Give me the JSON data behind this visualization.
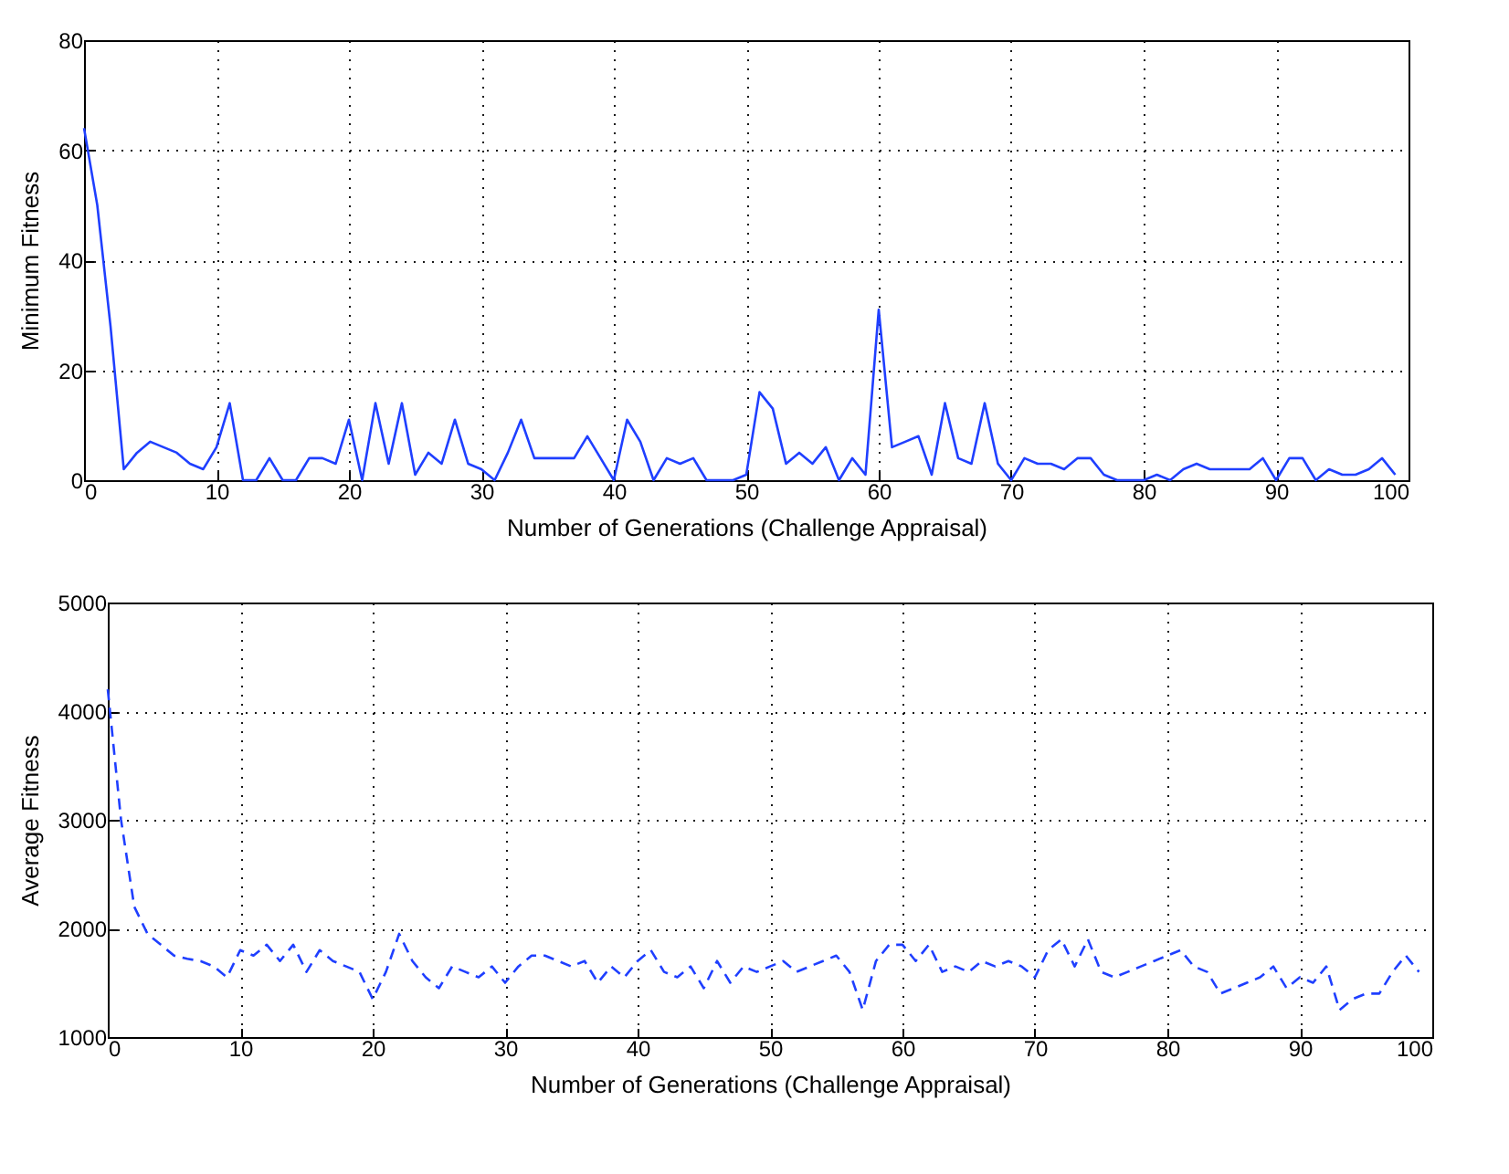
{
  "chart_data": [
    {
      "type": "line",
      "xlabel": "Number of Generations (Challenge Appraisal)",
      "ylabel": "Minimum Fitness",
      "x": [
        0,
        1,
        2,
        3,
        4,
        5,
        6,
        7,
        8,
        9,
        10,
        11,
        12,
        13,
        14,
        15,
        16,
        17,
        18,
        19,
        20,
        21,
        22,
        23,
        24,
        25,
        26,
        27,
        28,
        29,
        30,
        31,
        32,
        33,
        34,
        35,
        36,
        37,
        38,
        39,
        40,
        41,
        42,
        43,
        44,
        45,
        46,
        47,
        48,
        49,
        50,
        51,
        52,
        53,
        54,
        55,
        56,
        57,
        58,
        59,
        60,
        61,
        62,
        63,
        64,
        65,
        66,
        67,
        68,
        69,
        70,
        71,
        72,
        73,
        74,
        75,
        76,
        77,
        78,
        79,
        80,
        81,
        82,
        83,
        84,
        85,
        86,
        87,
        88,
        89,
        90,
        91,
        92,
        93,
        94,
        95,
        96,
        97,
        98,
        99
      ],
      "series": [
        {
          "color": "#1f3fff",
          "values": [
            64,
            50,
            28,
            2,
            5,
            7,
            6,
            5,
            3,
            2,
            6,
            14,
            0,
            0,
            4,
            0,
            0,
            4,
            4,
            3,
            11,
            0,
            14,
            3,
            14,
            1,
            5,
            3,
            11,
            3,
            2,
            0,
            5,
            11,
            4,
            4,
            4,
            4,
            8,
            4,
            0,
            11,
            7,
            0,
            4,
            3,
            4,
            0,
            0,
            0,
            1,
            16,
            13,
            3,
            5,
            3,
            6,
            0,
            4,
            1,
            31,
            6,
            7,
            8,
            1,
            14,
            4,
            3,
            14,
            3,
            0,
            4,
            3,
            3,
            2,
            4,
            4,
            1,
            0,
            0,
            0,
            1,
            0,
            2,
            3,
            2,
            2,
            2,
            2,
            4,
            0,
            4,
            4,
            0,
            2,
            1,
            1,
            2,
            4,
            1
          ]
        }
      ],
      "xlim": [
        0,
        100
      ],
      "xticks": [
        0,
        10,
        20,
        30,
        40,
        50,
        60,
        70,
        80,
        90,
        100
      ],
      "ylim": [
        0,
        80
      ],
      "yticks": [
        0,
        20,
        40,
        60,
        80
      ],
      "grid": true,
      "line_style": "solid"
    },
    {
      "type": "line",
      "xlabel": "Number of Generations (Challenge Appraisal)",
      "ylabel": "Average Fitness",
      "x": [
        0,
        1,
        2,
        3,
        4,
        5,
        6,
        7,
        8,
        9,
        10,
        11,
        12,
        13,
        14,
        15,
        16,
        17,
        18,
        19,
        20,
        21,
        22,
        23,
        24,
        25,
        26,
        27,
        28,
        29,
        30,
        31,
        32,
        33,
        34,
        35,
        36,
        37,
        38,
        39,
        40,
        41,
        42,
        43,
        44,
        45,
        46,
        47,
        48,
        49,
        50,
        51,
        52,
        53,
        54,
        55,
        56,
        57,
        58,
        59,
        60,
        61,
        62,
        63,
        64,
        65,
        66,
        67,
        68,
        69,
        70,
        71,
        72,
        73,
        74,
        75,
        76,
        77,
        78,
        79,
        80,
        81,
        82,
        83,
        84,
        85,
        86,
        87,
        88,
        89,
        90,
        91,
        92,
        93,
        94,
        95,
        96,
        97,
        98,
        99
      ],
      "series": [
        {
          "color": "#1f3fff",
          "values": [
            4200,
            3000,
            2200,
            1950,
            1850,
            1750,
            1720,
            1700,
            1650,
            1550,
            1800,
            1750,
            1850,
            1700,
            1850,
            1600,
            1800,
            1700,
            1650,
            1600,
            1350,
            1600,
            1950,
            1700,
            1550,
            1450,
            1650,
            1600,
            1550,
            1650,
            1500,
            1650,
            1750,
            1750,
            1700,
            1650,
            1700,
            1500,
            1650,
            1550,
            1700,
            1800,
            1600,
            1550,
            1650,
            1450,
            1700,
            1500,
            1650,
            1600,
            1650,
            1700,
            1600,
            1650,
            1700,
            1750,
            1600,
            1250,
            1700,
            1850,
            1850,
            1700,
            1850,
            1600,
            1650,
            1600,
            1700,
            1650,
            1700,
            1650,
            1550,
            1800,
            1900,
            1650,
            1900,
            1600,
            1550,
            1600,
            1650,
            1700,
            1750,
            1800,
            1650,
            1600,
            1400,
            1450,
            1500,
            1550,
            1650,
            1450,
            1550,
            1500,
            1650,
            1250,
            1350,
            1400,
            1400,
            1600,
            1750,
            1600
          ]
        }
      ],
      "xlim": [
        0,
        100
      ],
      "xticks": [
        0,
        10,
        20,
        30,
        40,
        50,
        60,
        70,
        80,
        90,
        100
      ],
      "ylim": [
        1000,
        5000
      ],
      "yticks": [
        1000,
        2000,
        3000,
        4000,
        5000
      ],
      "grid": true,
      "line_style": "dashed"
    }
  ]
}
